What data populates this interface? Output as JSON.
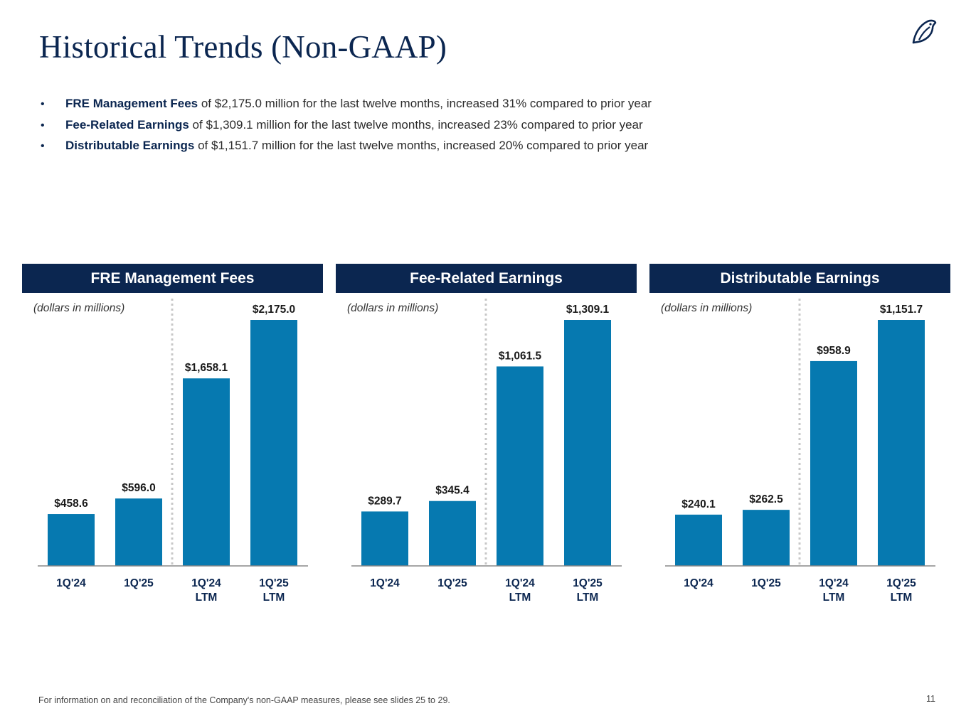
{
  "title": "Historical Trends (Non-GAAP)",
  "logo_icon": "owl-logo-icon",
  "bullets": [
    {
      "bold": "FRE Management Fees",
      "text": " of $2,175.0 million for the last twelve months, increased 31% compared to prior year"
    },
    {
      "bold": "Fee-Related Earnings",
      "text": " of $1,309.1 million for the last twelve months, increased 23% compared to prior year"
    },
    {
      "bold": "Distributable Earnings",
      "text": " of $1,151.7 million for the last twelve months, increased 20% compared to prior year"
    }
  ],
  "colors": {
    "header_bg": "#0b2650",
    "bar": "#0679b0",
    "divider": "#c8c8c8",
    "axis": "#888888"
  },
  "chart_data": [
    {
      "type": "bar",
      "title": "FRE Management Fees",
      "unit_note": "(dollars in millions)",
      "categories": [
        [
          "1Q'24"
        ],
        [
          "1Q'25"
        ],
        [
          "1Q'24",
          "LTM"
        ],
        [
          "1Q'25",
          "LTM"
        ]
      ],
      "values": [
        458.6,
        596.0,
        1658.1,
        2175.0
      ],
      "labels": [
        "$458.6",
        "$596.0",
        "$1,658.1",
        "$2,175.0"
      ],
      "ylim": [
        0,
        2175.0
      ]
    },
    {
      "type": "bar",
      "title": "Fee-Related Earnings",
      "unit_note": "(dollars in millions)",
      "categories": [
        [
          "1Q'24"
        ],
        [
          "1Q'25"
        ],
        [
          "1Q'24",
          "LTM"
        ],
        [
          "1Q'25",
          "LTM"
        ]
      ],
      "values": [
        289.7,
        345.4,
        1061.5,
        1309.1
      ],
      "labels": [
        "$289.7",
        "$345.4",
        "$1,061.5",
        "$1,309.1"
      ],
      "ylim": [
        0,
        1309.1
      ]
    },
    {
      "type": "bar",
      "title": "Distributable Earnings",
      "unit_note": "(dollars in millions)",
      "categories": [
        [
          "1Q'24"
        ],
        [
          "1Q'25"
        ],
        [
          "1Q'24",
          "LTM"
        ],
        [
          "1Q'25",
          "LTM"
        ]
      ],
      "values": [
        240.1,
        262.5,
        958.9,
        1151.7
      ],
      "labels": [
        "$240.1",
        "$262.5",
        "$958.9",
        "$1,151.7"
      ],
      "ylim": [
        0,
        1151.7
      ]
    }
  ],
  "footnote": "For information on and reconciliation of the Company's non-GAAP measures, please see slides 25 to 29.",
  "page_number": "11"
}
